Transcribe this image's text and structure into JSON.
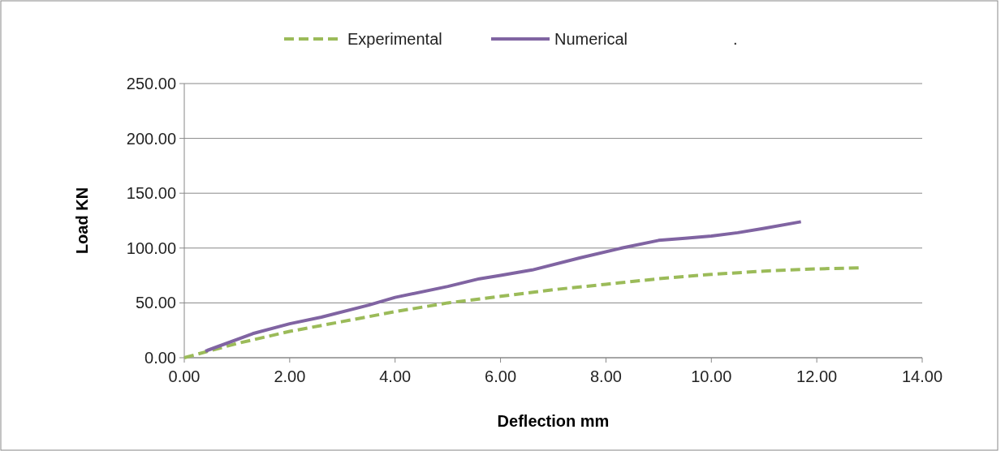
{
  "chart_data": {
    "type": "line",
    "xlabel": "Deflection mm",
    "ylabel": "Load KN",
    "xlim": [
      0,
      14
    ],
    "xticks": [
      {
        "value": 0,
        "label": "0.00"
      },
      {
        "value": 2,
        "label": "2.00"
      },
      {
        "value": 4,
        "label": "4.00"
      },
      {
        "value": 6,
        "label": "6.00"
      },
      {
        "value": 8,
        "label": "8.00"
      },
      {
        "value": 10,
        "label": "10.00"
      },
      {
        "value": 12,
        "label": "12.00"
      },
      {
        "value": 14,
        "label": "14.00"
      }
    ],
    "ylim": [
      0,
      250
    ],
    "yticks": [
      {
        "value": 0,
        "label": "0.00"
      },
      {
        "value": 50,
        "label": "50.00"
      },
      {
        "value": 100,
        "label": "100.00"
      },
      {
        "value": 150,
        "label": "150.00"
      },
      {
        "value": 200,
        "label": "200.00"
      },
      {
        "value": 250,
        "label": "250.00"
      }
    ],
    "grid": "y",
    "legend": "top",
    "marker": "none",
    "annotations": [
      "."
    ],
    "series": [
      {
        "name": "Experimental",
        "color": "#9bbb59",
        "line_style": "dashed",
        "x": [
          0,
          1,
          2,
          3,
          4,
          5,
          6,
          7,
          8,
          9,
          10,
          11,
          12,
          12.85
        ],
        "values": [
          0,
          13,
          24,
          33,
          42,
          50,
          56,
          62,
          67,
          72,
          76,
          79,
          81,
          82
        ]
      },
      {
        "name": "Numerical",
        "color": "#8064a2",
        "line_style": "solid",
        "x": [
          0.4,
          1.3,
          2,
          2.6,
          3.5,
          4,
          5,
          5.6,
          6,
          6.6,
          7.5,
          8.3,
          9,
          9.5,
          10,
          10.5,
          11,
          11.7
        ],
        "values": [
          6,
          22,
          31,
          37,
          48,
          55,
          65,
          72,
          75,
          80,
          91,
          100,
          107,
          109,
          111,
          114,
          118,
          124
        ]
      }
    ]
  }
}
